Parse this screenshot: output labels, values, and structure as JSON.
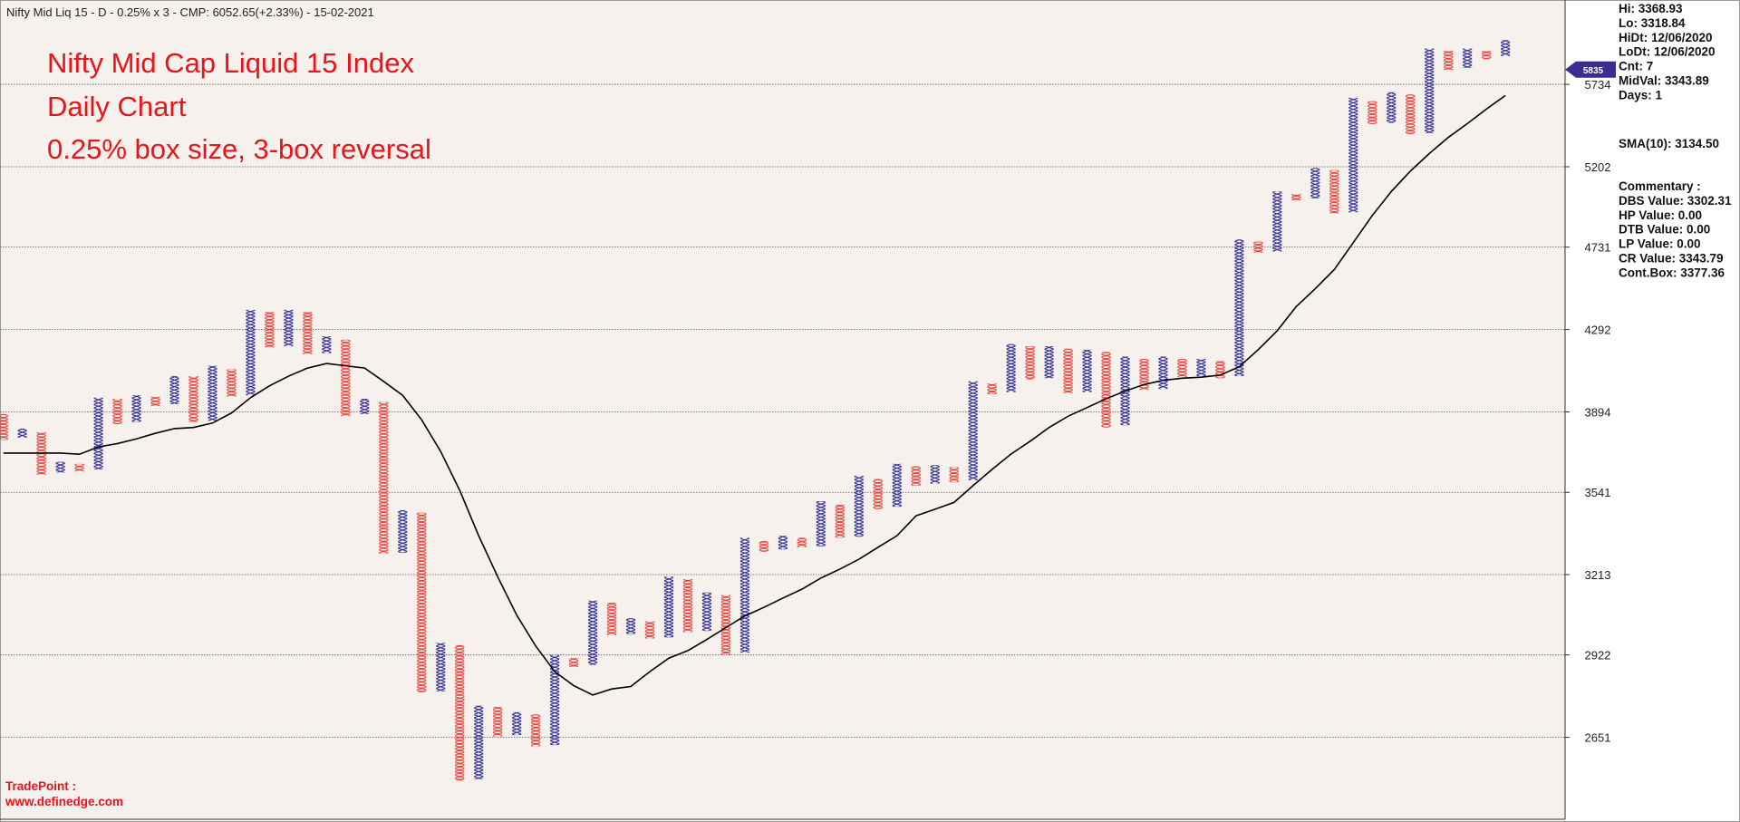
{
  "chart_data": {
    "type": "pnf",
    "header": "Nifty Mid Liq 15 - D - 0.25% x 3 - CMP: 6052.65(+2.33%) - 15-02-2021",
    "title": [
      "Nifty Mid Cap Liquid 15 Index",
      "Daily Chart",
      "0.25% box size, 3-box reversal"
    ],
    "footer": [
      "TradePoint :",
      "www.definedge.com"
    ],
    "info": [
      [
        "Hi: 3368.93",
        "Lo: 3318.84",
        "HiDt: 12/06/2020",
        "LoDt: 12/06/2020",
        "Cnt: 7",
        "MidVal: 3343.89",
        "Days: 1"
      ],
      [
        "SMA(10): 3134.50"
      ],
      [
        "Commentary :",
        "DBS Value:  3302.31",
        "HP Value: 0.00",
        "DTB Value: 0.00",
        "LP Value: 0.00",
        "CR Value: 3343.79",
        "Cont.Box: 3377.36"
      ]
    ],
    "x_color": "#2e2b96",
    "o_color": "#e8403a",
    "sma_color": "#000000",
    "marker_color": "#3b2d8f",
    "log_scale": true,
    "grid": true,
    "ylim": [
      2409,
      6301
    ],
    "yticks": [
      2651,
      2922,
      3213,
      3541,
      3894,
      4292,
      4731,
      5202,
      5734
    ],
    "price_marker": 5835,
    "columns": {
      "direction": [
        "O",
        "X",
        "O",
        "X",
        "O",
        "X",
        "O",
        "X",
        "O",
        "X",
        "O",
        "X",
        "O",
        "X",
        "O",
        "X",
        "O",
        "X",
        "O",
        "X",
        "O",
        "X",
        "O",
        "X",
        "O",
        "X",
        "O",
        "X",
        "O",
        "X",
        "O",
        "X",
        "O",
        "X",
        "O",
        "X",
        "O",
        "X",
        "O",
        "X",
        "O",
        "X",
        "O",
        "X",
        "O",
        "X",
        "O",
        "X",
        "O",
        "X",
        "O",
        "X",
        "O",
        "X",
        "O",
        "X",
        "O",
        "X",
        "O",
        "X",
        "O",
        "X",
        "O",
        "X",
        "O",
        "X",
        "O",
        "X",
        "O",
        "X",
        "O",
        "X",
        "O",
        "X",
        "O",
        "X",
        "O",
        "X",
        "O",
        "X"
      ],
      "low": [
        3767,
        3777,
        3615,
        3625,
        3629,
        3638,
        3838,
        3848,
        3920,
        3930,
        3848,
        3853,
        3965,
        3971,
        4202,
        4208,
        4168,
        4174,
        3874,
        3884,
        3293,
        3297,
        2796,
        2799,
        2519,
        2523,
        2654,
        2658,
        2623,
        2627,
        2880,
        2888,
        2991,
        2995,
        2979,
        2983,
        3002,
        3006,
        2922,
        2930,
        3301,
        3310,
        3318,
        3322,
        3356,
        3360,
        3471,
        3481,
        3569,
        3578,
        3583,
        3592,
        3976,
        3986,
        4047,
        4052,
        3981,
        3986,
        3823,
        3833,
        3996,
        4001,
        4057,
        4062,
        4052,
        4062,
        4700,
        4706,
        5000,
        5011,
        4923,
        4929,
        5471,
        5479,
        5406,
        5413,
        5832,
        5847,
        5907,
        5929
      ],
      "high": [
        3884,
        3818,
        3802,
        3671,
        3662,
        3960,
        3955,
        3971,
        3965,
        4062,
        4062,
        4112,
        4095,
        4393,
        4382,
        4393,
        4382,
        4258,
        4241,
        3955,
        3940,
        3467,
        3457,
        2964,
        2956,
        2752,
        2748,
        2731,
        2724,
        2922,
        2911,
        3116,
        3108,
        3052,
        3041,
        3205,
        3196,
        3146,
        3137,
        3356,
        3343,
        3364,
        3356,
        3504,
        3490,
        3611,
        3597,
        3662,
        3652,
        3657,
        3648,
        4037,
        4027,
        4219,
        4208,
        4208,
        4196,
        4191,
        4180,
        4157,
        4146,
        4157,
        4146,
        4146,
        4135,
        4774,
        4762,
        5052,
        5038,
        5195,
        5182,
        5644,
        5621,
        5681,
        5666,
        5982,
        5967,
        5982,
        5967,
        6042
      ]
    },
    "sma": {
      "values": [
        3709,
        3709,
        3709,
        3709,
        3704,
        3736,
        3751,
        3772,
        3797,
        3818,
        3823,
        3843,
        3889,
        3960,
        4016,
        4062,
        4101,
        4123,
        4112,
        4101,
        4037,
        3971,
        3858,
        3716,
        3550,
        3364,
        3205,
        3063,
        2953,
        2865,
        2818,
        2787,
        2807,
        2815,
        2865,
        2911,
        2937,
        2976,
        3018,
        3060,
        3091,
        3125,
        3158,
        3200,
        3234,
        3272,
        3318,
        3364,
        3444,
        3471,
        3499,
        3569,
        3638,
        3705,
        3761,
        3823,
        3874,
        3914,
        3955,
        3991,
        4022,
        4042,
        4052,
        4057,
        4067,
        4107,
        4191,
        4286,
        4410,
        4504,
        4607,
        4756,
        4911,
        5052,
        5175,
        5284,
        5386,
        5474,
        5569,
        5659
      ]
    }
  }
}
